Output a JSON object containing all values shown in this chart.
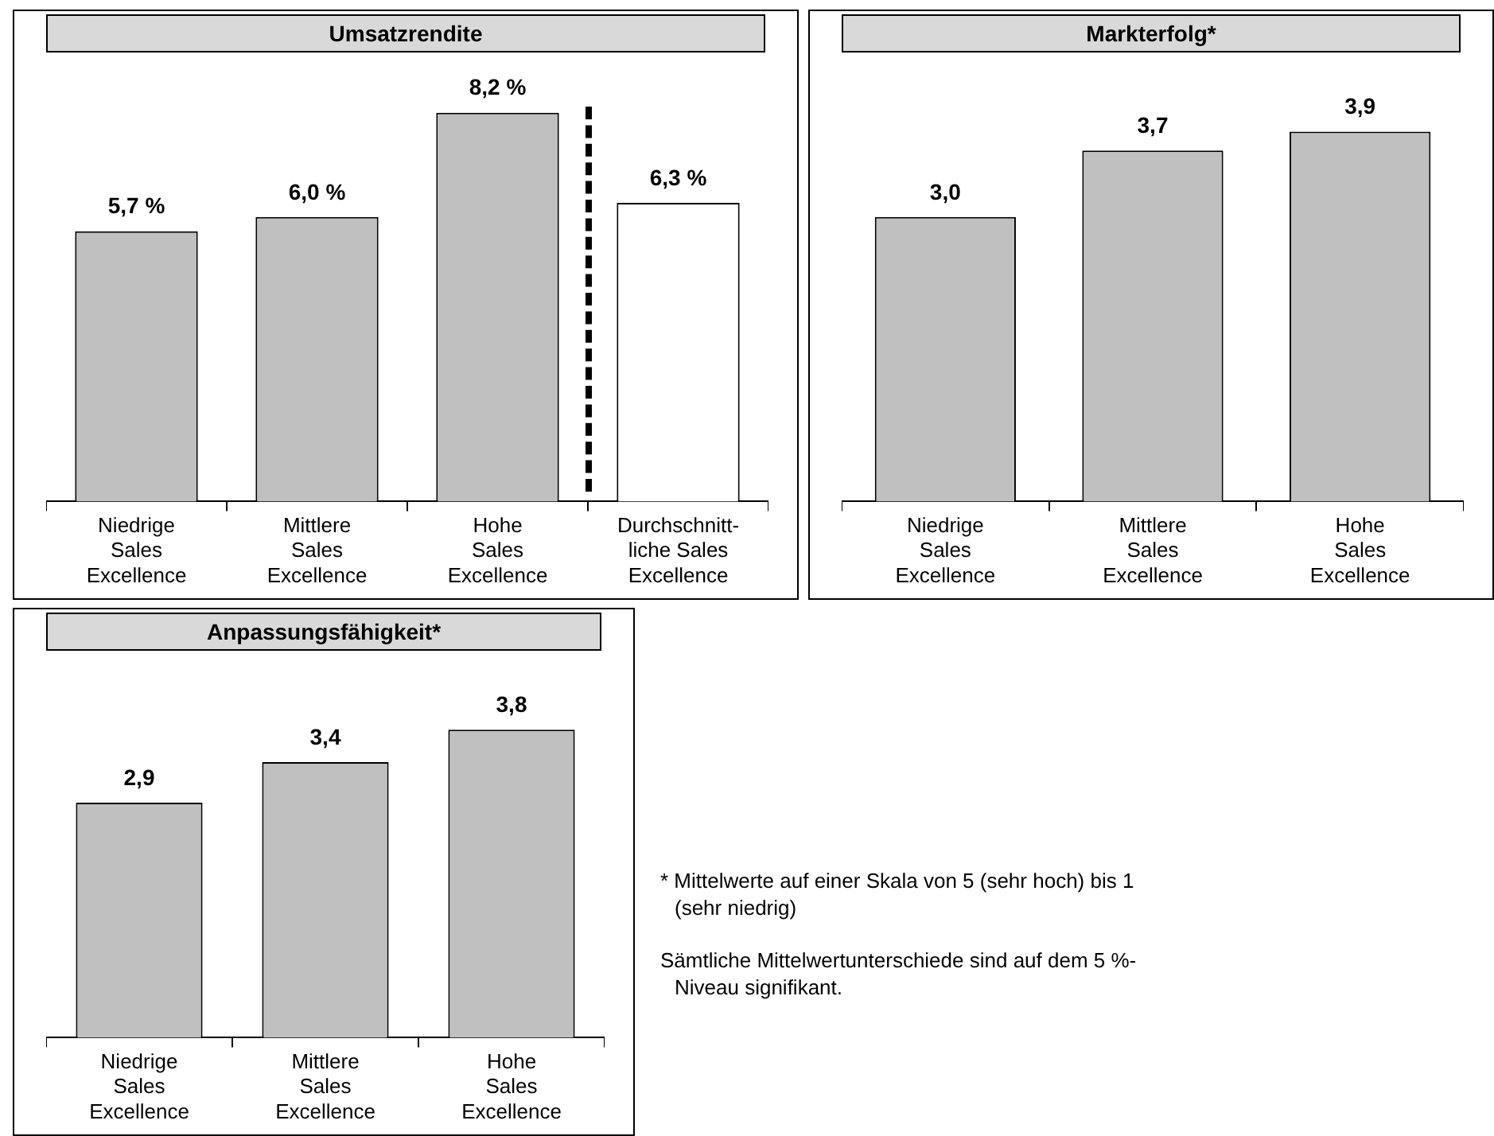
{
  "chart_data": [
    {
      "type": "bar",
      "title": "Umsatzrendite",
      "categories": [
        "Niedrige\nSales\nExcellence",
        "Mittlere\nSales\nExcellence",
        "Hohe\nSales\nExcellence",
        "Durchschnitt-\nliche Sales\nExcellence"
      ],
      "values": [
        5.7,
        6.0,
        8.2,
        6.3
      ],
      "colors": [
        "#c0c0c0",
        "#c0c0c0",
        "#c0c0c0",
        "#ffffff"
      ],
      "value_labels": [
        "5,7 %",
        "6,0 %",
        "8,2 %",
        "6,3 %"
      ],
      "tick_labels": "x"
    },
    {
      "type": "bar",
      "title": "Markterfolg*",
      "categories": [
        "Niedrige\nSales\nExcellence",
        "Mittlere\nSales\nExcellence",
        "Hohe\nSales\nExcellence"
      ],
      "values": [
        3.0,
        3.7,
        3.9
      ],
      "colors": [
        "#c0c0c0",
        "#c0c0c0",
        "#c0c0c0"
      ],
      "value_labels": [
        "3,0",
        "3,7",
        "3,9"
      ],
      "tick_labels": "x"
    },
    {
      "type": "bar",
      "title": "Anpassungsfähigkeit*",
      "categories": [
        "Niedrige\nSales\nExcellence",
        "Mittlere\nSales\nExcellence",
        "Hohe\nSales\nExcellence"
      ],
      "values": [
        2.9,
        3.4,
        3.8
      ],
      "colors": [
        "#c0c0c0",
        "#c0c0c0",
        "#c0c0c0"
      ],
      "value_labels": [
        "2,9",
        "3,4",
        "3,8"
      ],
      "tick_labels": "x"
    },
    {
      "type": "other",
      "annotations": [
        "* Mittelwerte auf einer Skala von 5 (sehr hoch) bis 1 (sehr niedrig)",
        "Sämtliche Mittelwertunterschiede sind auf dem 5 %-Niveau signifikant."
      ]
    }
  ]
}
